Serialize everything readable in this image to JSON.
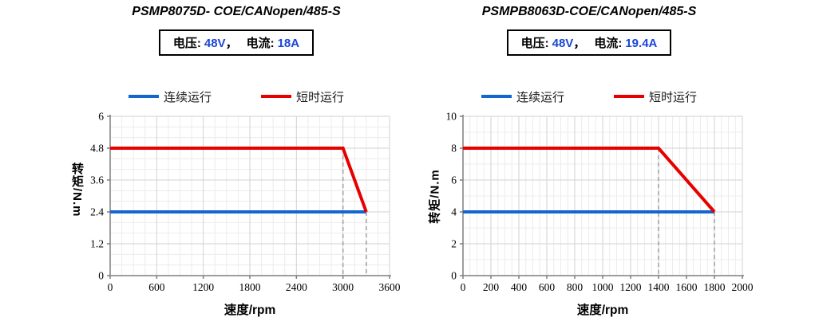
{
  "colors": {
    "continuous_line": "#1565d0",
    "short_time_line": "#e60000",
    "spec_value": "#1a46d8",
    "grid_major": "#d2d2d2",
    "grid_minor": "#ececec",
    "axis": "#7f7f7f",
    "tick_label": "#000000",
    "dashed_guide": "#a3a3a3"
  },
  "charts": [
    {
      "title": "PSMP8075D- COE/CANopen/485-S",
      "spec": {
        "voltage_label": "电压:",
        "voltage_value": "48V",
        "separator": "，",
        "current_label": "电流:",
        "current_value": "18A"
      },
      "legend": [
        {
          "id": "continuous",
          "label": "连续运行"
        },
        {
          "id": "short-time",
          "label": "短时运行"
        }
      ]
    },
    {
      "title": "PSMPB8063D-COE/CANopen/485-S",
      "spec": {
        "voltage_label": "电压:",
        "voltage_value": "48V",
        "separator": "，",
        "current_label": "电流:",
        "current_value": "19.4A"
      },
      "legend": [
        {
          "id": "continuous",
          "label": "连续运行"
        },
        {
          "id": "short-time",
          "label": "短时运行"
        }
      ]
    }
  ],
  "chart_data": [
    {
      "type": "line",
      "title": "PSMP8075D- COE/CANopen/485-S",
      "xlabel": "速度/rpm",
      "ylabel": "转矩/N.m",
      "xlim": [
        0,
        3600
      ],
      "ylim": [
        0,
        6
      ],
      "xticks": [
        0,
        600,
        1200,
        1800,
        2400,
        3000,
        3600
      ],
      "yticks": [
        0,
        1.2,
        2.4,
        3.6,
        4.8,
        6
      ],
      "x_minor_step": 150,
      "y_minor_step": 0.4,
      "grid": true,
      "legend_position": "top",
      "series": [
        {
          "id": "continuous",
          "name": "连续运行",
          "color_key": "continuous_line",
          "points": [
            [
              0,
              2.4
            ],
            [
              3300,
              2.4
            ]
          ]
        },
        {
          "id": "short-time",
          "name": "短时运行",
          "color_key": "short_time_line",
          "points": [
            [
              0,
              4.8
            ],
            [
              3000,
              4.8
            ],
            [
              3300,
              2.4
            ]
          ]
        }
      ],
      "dashed_guides": [
        {
          "x": 3000,
          "y": 4.8
        },
        {
          "x": 3300,
          "y": 2.4
        }
      ]
    },
    {
      "type": "line",
      "title": "PSMPB8063D-COE/CANopen/485-S",
      "xlabel": "速度/rpm",
      "ylabel": "转矩/N.m",
      "xlim": [
        0,
        2000
      ],
      "ylim": [
        0,
        10
      ],
      "xticks": [
        0,
        200,
        400,
        600,
        800,
        1000,
        1200,
        1400,
        1600,
        1800,
        2000
      ],
      "yticks": [
        0,
        2,
        4,
        6,
        8,
        10
      ],
      "x_minor_step": 50,
      "y_minor_step": 1,
      "grid": true,
      "legend_position": "top",
      "series": [
        {
          "id": "continuous",
          "name": "连续运行",
          "color_key": "continuous_line",
          "points": [
            [
              0,
              4
            ],
            [
              1800,
              4
            ]
          ]
        },
        {
          "id": "short-time",
          "name": "短时运行",
          "color_key": "short_time_line",
          "points": [
            [
              0,
              8
            ],
            [
              1400,
              8
            ],
            [
              1800,
              4
            ]
          ]
        }
      ],
      "dashed_guides": [
        {
          "x": 1400,
          "y": 8
        },
        {
          "x": 1800,
          "y": 4
        }
      ]
    }
  ]
}
